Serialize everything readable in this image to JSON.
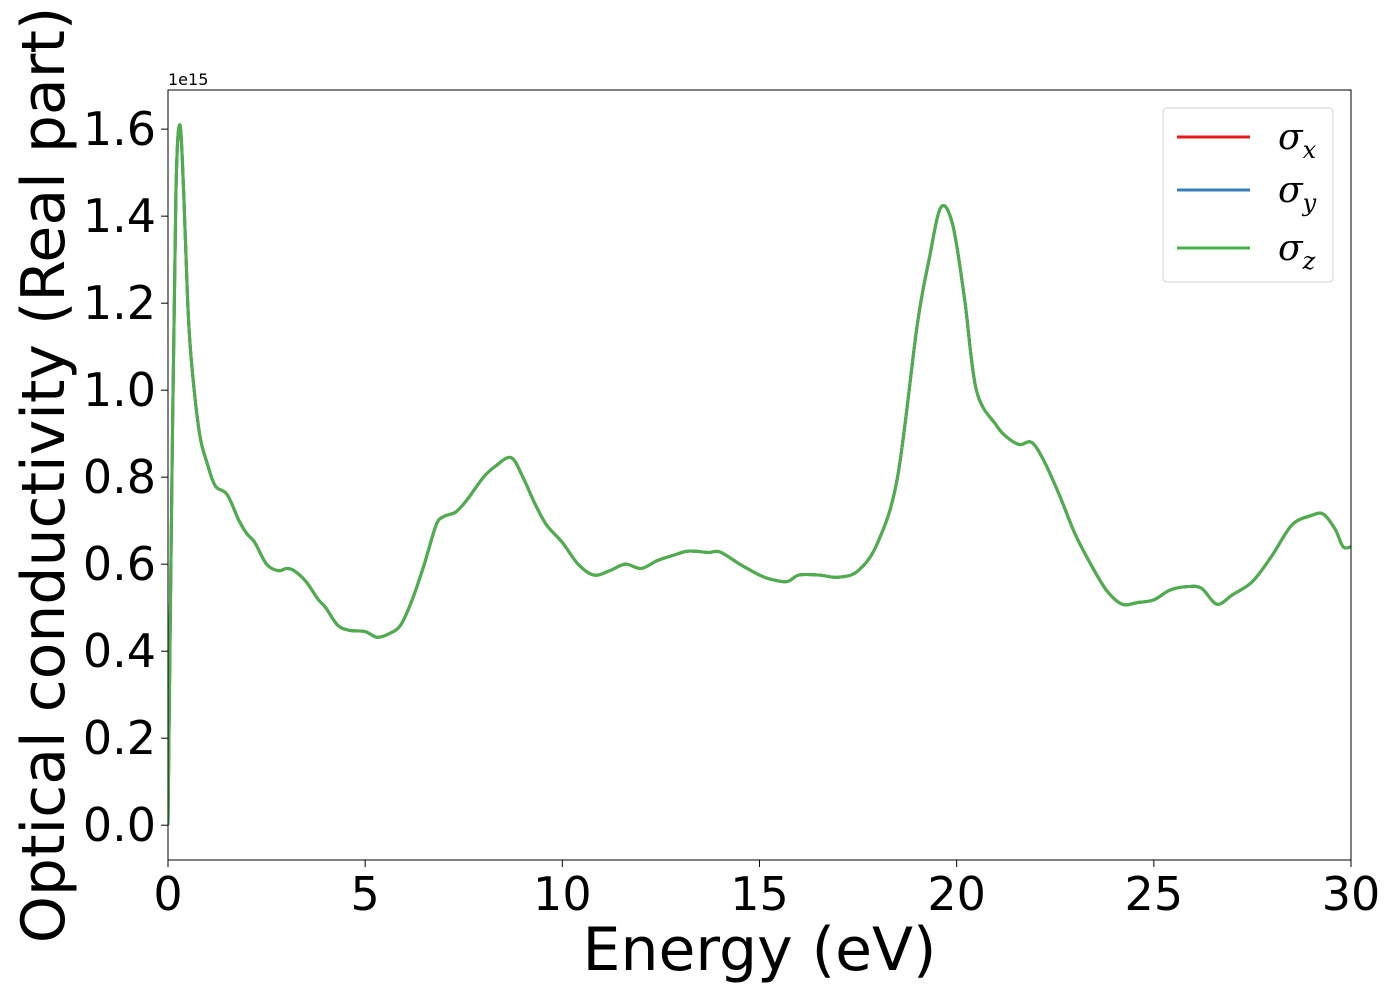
{
  "chart_data": {
    "type": "line",
    "xlabel": "Energy (eV)",
    "ylabel": "Optical conductivity (Real part)",
    "y_offset_text": "1e15",
    "xlim": [
      0,
      30
    ],
    "ylim": [
      -0.08,
      1.69
    ],
    "x_ticks": [
      0,
      5,
      10,
      15,
      20,
      25,
      30
    ],
    "x_tick_labels": [
      "0",
      "5",
      "10",
      "15",
      "20",
      "25",
      "30"
    ],
    "y_ticks": [
      0.0,
      0.2,
      0.4,
      0.6,
      0.8,
      1.0,
      1.2,
      1.4,
      1.6
    ],
    "y_tick_labels": [
      "0.0",
      "0.2",
      "0.4",
      "0.6",
      "0.8",
      "1.0",
      "1.2",
      "1.4",
      "1.6"
    ],
    "grid": false,
    "legend_position": "top-right",
    "series": [
      {
        "name": "σx",
        "symbol": "σ",
        "sub": "x",
        "color": "#e41a1c"
      },
      {
        "name": "σy",
        "symbol": "σ",
        "sub": "y",
        "color": "#377eb8"
      },
      {
        "name": "σz",
        "symbol": "σ",
        "sub": "z",
        "color": "#4daf4a"
      }
    ],
    "x": [
      0,
      0.1,
      0.2,
      0.3,
      0.4,
      0.5,
      0.6,
      0.8,
      1.0,
      1.2,
      1.5,
      1.8,
      2.0,
      2.2,
      2.5,
      2.8,
      3.0,
      3.2,
      3.5,
      3.8,
      4.0,
      4.3,
      4.6,
      5.0,
      5.3,
      5.6,
      5.9,
      6.2,
      6.5,
      6.8,
      7.0,
      7.3,
      7.6,
      8.0,
      8.3,
      8.7,
      9.0,
      9.3,
      9.6,
      10.0,
      10.4,
      10.8,
      11.2,
      11.6,
      12.0,
      12.4,
      12.8,
      13.2,
      13.7,
      14.0,
      14.5,
      15.0,
      15.3,
      15.7,
      16.0,
      16.5,
      17.0,
      17.5,
      18.0,
      18.5,
      19.0,
      19.3,
      19.6,
      19.9,
      20.2,
      20.5,
      21.0,
      21.3,
      21.6,
      21.9,
      22.2,
      22.6,
      23.0,
      23.4,
      23.8,
      24.2,
      24.6,
      25.0,
      25.4,
      25.8,
      26.2,
      26.6,
      27.0,
      27.5,
      28.0,
      28.5,
      29.0,
      29.3,
      29.6,
      29.8,
      30.0
    ],
    "y": [
      0.0,
      0.8,
      1.45,
      1.61,
      1.45,
      1.2,
      1.06,
      0.9,
      0.83,
      0.78,
      0.76,
      0.7,
      0.67,
      0.65,
      0.6,
      0.585,
      0.59,
      0.585,
      0.56,
      0.52,
      0.5,
      0.46,
      0.448,
      0.445,
      0.432,
      0.44,
      0.46,
      0.52,
      0.6,
      0.69,
      0.71,
      0.72,
      0.75,
      0.8,
      0.825,
      0.845,
      0.8,
      0.74,
      0.69,
      0.65,
      0.6,
      0.575,
      0.585,
      0.6,
      0.59,
      0.608,
      0.62,
      0.63,
      0.627,
      0.628,
      0.6,
      0.575,
      0.565,
      0.56,
      0.575,
      0.575,
      0.57,
      0.585,
      0.65,
      0.8,
      1.15,
      1.3,
      1.42,
      1.38,
      1.21,
      1.0,
      0.92,
      0.89,
      0.875,
      0.88,
      0.84,
      0.76,
      0.67,
      0.6,
      0.54,
      0.508,
      0.512,
      0.518,
      0.54,
      0.548,
      0.545,
      0.508,
      0.53,
      0.56,
      0.62,
      0.69,
      0.712,
      0.715,
      0.68,
      0.64,
      0.64
    ]
  }
}
